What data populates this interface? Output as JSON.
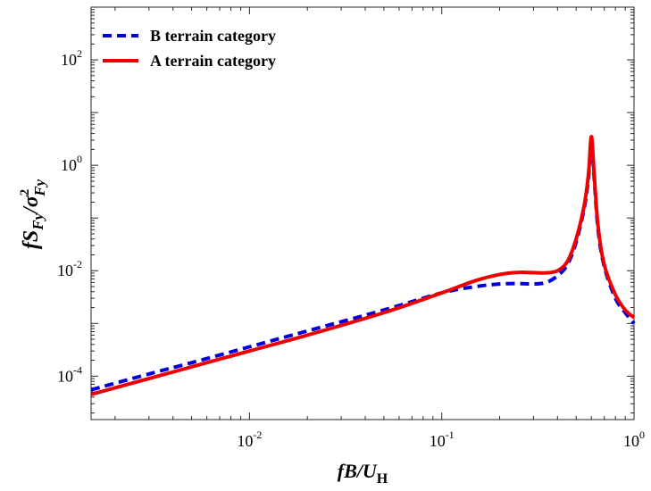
{
  "chart_data": {
    "type": "line",
    "xscale": "log",
    "yscale": "log",
    "xlim": [
      0.0015,
      1
    ],
    "ylim": [
      1.5e-05,
      1000
    ],
    "grid": false,
    "legend_position": "top-left",
    "xlabel": {
      "main": "fB/U",
      "sub": "H"
    },
    "ylabel": {
      "part1": "fS",
      "sub1": "Fy",
      "part2": "/σ",
      "sup2": "2",
      "sub2": "Fy"
    },
    "x_ticks": [
      {
        "value": 0.01,
        "base": "10",
        "exp": "-2"
      },
      {
        "value": 0.1,
        "base": "10",
        "exp": "-1"
      },
      {
        "value": 1,
        "base": "10",
        "exp": "0"
      }
    ],
    "y_ticks": [
      {
        "value": 0.0001,
        "base": "10",
        "exp": "-4"
      },
      {
        "value": 0.01,
        "base": "10",
        "exp": "-2"
      },
      {
        "value": 1,
        "base": "10",
        "exp": "0"
      },
      {
        "value": 100,
        "base": "10",
        "exp": "2"
      }
    ],
    "series": [
      {
        "name": "B terrain category",
        "color": "#0000dd",
        "style": "dashed",
        "x": [
          0.0015,
          0.003,
          0.005,
          0.01,
          0.02,
          0.05,
          0.1,
          0.15,
          0.2,
          0.25,
          0.3,
          0.35,
          0.4,
          0.45,
          0.5,
          0.55,
          0.58,
          0.6,
          0.62,
          0.65,
          0.7,
          0.8,
          0.9,
          1.0
        ],
        "y": [
          5.5e-05,
          0.00011,
          0.00018,
          0.00036,
          0.00072,
          0.0018,
          0.0038,
          0.005,
          0.0056,
          0.0057,
          0.0056,
          0.006,
          0.008,
          0.013,
          0.035,
          0.15,
          0.6,
          3.0,
          0.6,
          0.06,
          0.012,
          0.003,
          0.0016,
          0.001
        ]
      },
      {
        "name": "A terrain category",
        "color": "#ee0000",
        "style": "solid",
        "x": [
          0.0015,
          0.003,
          0.005,
          0.01,
          0.02,
          0.05,
          0.1,
          0.15,
          0.2,
          0.25,
          0.3,
          0.35,
          0.4,
          0.45,
          0.5,
          0.55,
          0.58,
          0.6,
          0.62,
          0.65,
          0.7,
          0.8,
          0.9,
          1.0
        ],
        "y": [
          4.5e-05,
          9e-05,
          0.00015,
          0.0003,
          0.0006,
          0.0016,
          0.0038,
          0.0065,
          0.0085,
          0.0093,
          0.0092,
          0.0091,
          0.01,
          0.015,
          0.04,
          0.17,
          0.7,
          3.5,
          0.7,
          0.07,
          0.013,
          0.0035,
          0.0018,
          0.0013
        ]
      }
    ]
  }
}
